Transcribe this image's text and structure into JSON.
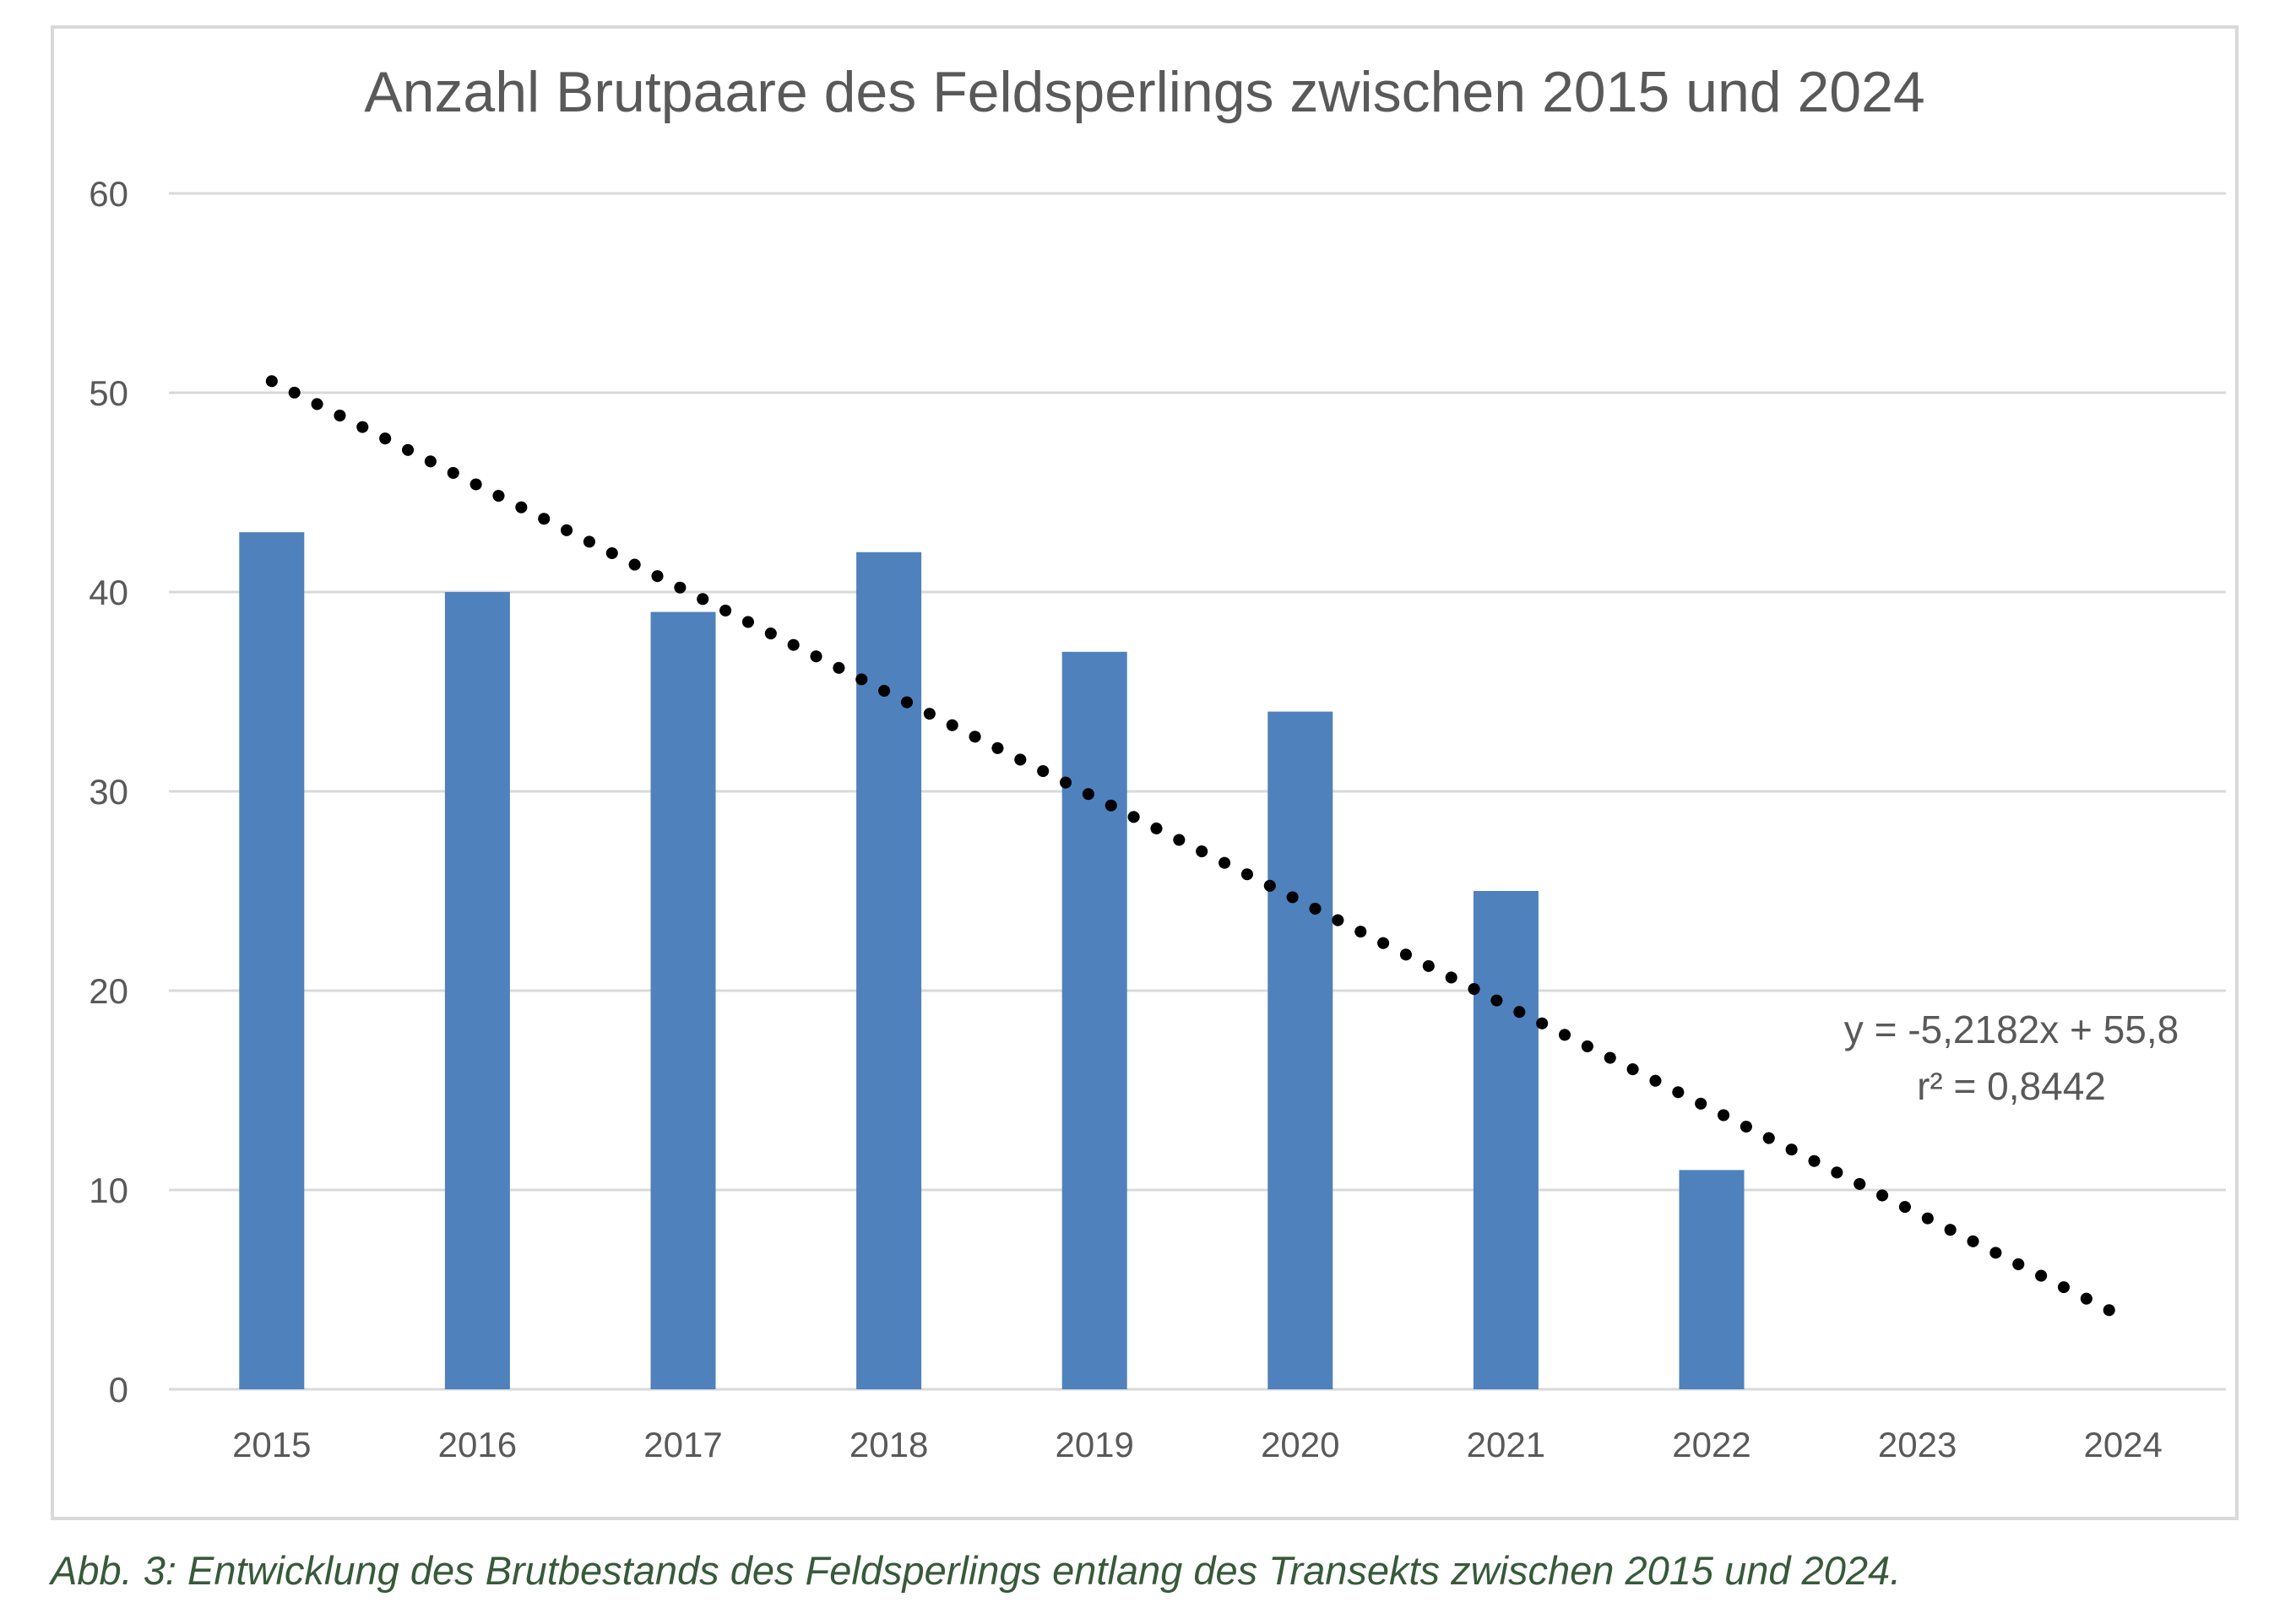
{
  "chart_data": {
    "type": "bar",
    "title": "Anzahl Brutpaare des Feldsperlings zwischen 2015 und 2024",
    "xlabel": "",
    "ylabel": "",
    "categories": [
      "2015",
      "2016",
      "2017",
      "2018",
      "2019",
      "2020",
      "2021",
      "2022",
      "2023",
      "2024"
    ],
    "values": [
      43,
      40,
      39,
      42,
      37,
      34,
      25,
      11,
      null,
      null
    ],
    "ylim": [
      0,
      60
    ],
    "yticks": [
      0,
      10,
      20,
      30,
      40,
      50,
      60
    ],
    "grid": true,
    "legend": "none",
    "trendline": {
      "type": "linear",
      "style": "dotted",
      "slope": -5.2182,
      "intercept": 55.8,
      "equation_label": "y = -5,2182x + 55,8",
      "r2_label": "r² = 0,8442"
    },
    "colors": {
      "bar": "#4f81bd",
      "trendline": "#000000",
      "grid": "#d9d9d9",
      "text": "#595959"
    }
  },
  "caption": "Abb. 3: Entwicklung des Brutbestands des Feldsperlings entlang des Transekts zwischen 2015 und 2024."
}
